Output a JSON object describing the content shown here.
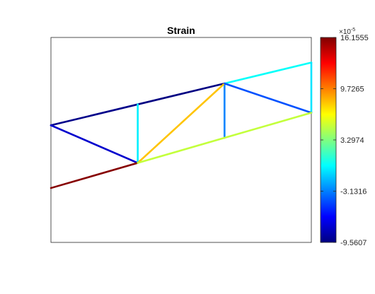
{
  "chart_data": {
    "type": "truss-strain-plot",
    "title": "Strain",
    "colormap": "jet",
    "colorbar": {
      "multiplier": "×10",
      "exponent": "-5",
      "min": -9.5607,
      "max": 16.1555,
      "ticks": [
        {
          "value": 16.1555,
          "label": "16.1555"
        },
        {
          "value": 9.7265,
          "label": "9.7265"
        },
        {
          "value": 3.2974,
          "label": "3.2974"
        },
        {
          "value": -3.1316,
          "label": "-3.1316"
        },
        {
          "value": -9.5607,
          "label": "-9.5607"
        }
      ]
    },
    "xlim": [
      0,
      3
    ],
    "ylim": [
      -1.4,
      1.05
    ],
    "nodes": {
      "A": [
        0,
        0
      ],
      "B": [
        1,
        0.25
      ],
      "C": [
        2,
        0.5
      ],
      "D": [
        3,
        0.75
      ],
      "E": [
        0,
        -0.75
      ],
      "F": [
        1,
        -0.45
      ],
      "G": [
        2,
        -0.15
      ],
      "H": [
        3,
        0.15
      ]
    },
    "members": [
      {
        "from": "A",
        "to": "B",
        "strain": -9.3
      },
      {
        "from": "B",
        "to": "C",
        "strain": -9.5
      },
      {
        "from": "C",
        "to": "D",
        "strain": 0.2
      },
      {
        "from": "A",
        "to": "F",
        "strain": -7.6
      },
      {
        "from": "B",
        "to": "F",
        "strain": -0.3
      },
      {
        "from": "C",
        "to": "G",
        "strain": -3.0
      },
      {
        "from": "D",
        "to": "H",
        "strain": -0.6
      },
      {
        "from": "F",
        "to": "C",
        "strain": 8.0
      },
      {
        "from": "C",
        "to": "H",
        "strain": -4.3
      },
      {
        "from": "E",
        "to": "F",
        "strain": 16.0
      },
      {
        "from": "F",
        "to": "G",
        "strain": 5.0
      },
      {
        "from": "G",
        "to": "H",
        "strain": 5.0
      }
    ]
  }
}
